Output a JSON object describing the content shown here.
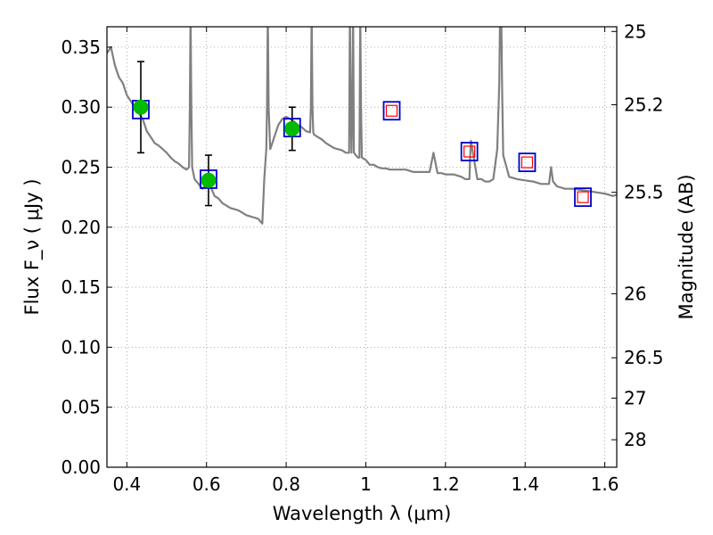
{
  "chart_data": {
    "type": "line",
    "xlabel": "Wavelength  λ (μm)",
    "ylabel": "Flux  F_ν  ( μJy )",
    "y2label": "Magnitude (AB)",
    "xlim": [
      0.35,
      1.63
    ],
    "ylim": [
      0.0,
      0.367
    ],
    "grid": true,
    "x_ticks": [
      0.4,
      0.6,
      0.8,
      1.0,
      1.2,
      1.4,
      1.6
    ],
    "x_tick_labels": [
      "0.4",
      "0.6",
      "0.8",
      "1",
      "1.2",
      "1.4",
      "1.6"
    ],
    "y_ticks": [
      0.0,
      0.05,
      0.1,
      0.15,
      0.2,
      0.25,
      0.3,
      0.35
    ],
    "y_tick_labels": [
      "0.00",
      "0.05",
      "0.10",
      "0.15",
      "0.20",
      "0.25",
      "0.30",
      "0.35"
    ],
    "y2_ticks": [
      25,
      25.2,
      25.5,
      26,
      26.5,
      27,
      28
    ],
    "y2_tick_labels": [
      "25",
      "25.2",
      "25.5",
      "26",
      "26.5",
      "27",
      "28"
    ],
    "colors": {
      "model": "#808080",
      "observed": "#00bb00",
      "model_photometry": "#0000cc",
      "upper_point": "#ff0000",
      "errorbar": "#000000",
      "grid": "#999999"
    },
    "series": [
      {
        "kind": "model_spectrum",
        "x": [
          0.35,
          0.36,
          0.37,
          0.38,
          0.39,
          0.4,
          0.41,
          0.42,
          0.43,
          0.44,
          0.45,
          0.46,
          0.47,
          0.48,
          0.49,
          0.5,
          0.51,
          0.52,
          0.53,
          0.54,
          0.55,
          0.556,
          0.558,
          0.56,
          0.562,
          0.564,
          0.57,
          0.58,
          0.59,
          0.6,
          0.61,
          0.62,
          0.63,
          0.64,
          0.65,
          0.66,
          0.67,
          0.68,
          0.69,
          0.7,
          0.71,
          0.72,
          0.73,
          0.735,
          0.74,
          0.745,
          0.75,
          0.752,
          0.754,
          0.756,
          0.76,
          0.765,
          0.77,
          0.78,
          0.79,
          0.8,
          0.81,
          0.82,
          0.83,
          0.84,
          0.85,
          0.86,
          0.862,
          0.864,
          0.866,
          0.868,
          0.87,
          0.88,
          0.89,
          0.9,
          0.91,
          0.92,
          0.93,
          0.94,
          0.95,
          0.958,
          0.96,
          0.962,
          0.964,
          0.966,
          0.968,
          0.97,
          0.98,
          0.984,
          0.986,
          0.988,
          0.99,
          1.0,
          1.01,
          1.02,
          1.03,
          1.04,
          1.05,
          1.06,
          1.07,
          1.08,
          1.09,
          1.1,
          1.12,
          1.14,
          1.16,
          1.17,
          1.18,
          1.19,
          1.2,
          1.22,
          1.24,
          1.25,
          1.26,
          1.262,
          1.264,
          1.27,
          1.28,
          1.29,
          1.3,
          1.31,
          1.32,
          1.33,
          1.335,
          1.337,
          1.34,
          1.342,
          1.345,
          1.36,
          1.38,
          1.4,
          1.42,
          1.44,
          1.46,
          1.465,
          1.47,
          1.48,
          1.5,
          1.52,
          1.54,
          1.56,
          1.58,
          1.6,
          1.62,
          1.63
        ],
        "y": [
          0.345,
          0.35,
          0.335,
          0.325,
          0.32,
          0.31,
          0.305,
          0.3,
          0.295,
          0.29,
          0.28,
          0.275,
          0.27,
          0.268,
          0.265,
          0.262,
          0.258,
          0.255,
          0.253,
          0.25,
          0.248,
          0.25,
          0.3,
          0.38,
          0.3,
          0.25,
          0.24,
          0.236,
          0.232,
          0.236,
          0.234,
          0.226,
          0.224,
          0.22,
          0.218,
          0.216,
          0.215,
          0.214,
          0.212,
          0.21,
          0.209,
          0.208,
          0.207,
          0.205,
          0.203,
          0.24,
          0.265,
          0.3,
          0.38,
          0.3,
          0.265,
          0.27,
          0.275,
          0.285,
          0.29,
          0.292,
          0.29,
          0.288,
          0.285,
          0.283,
          0.28,
          0.279,
          0.3,
          0.38,
          0.3,
          0.279,
          0.277,
          0.275,
          0.273,
          0.27,
          0.268,
          0.266,
          0.265,
          0.264,
          0.262,
          0.262,
          0.38,
          0.3,
          0.262,
          0.3,
          0.38,
          0.262,
          0.258,
          0.258,
          0.38,
          0.3,
          0.258,
          0.256,
          0.252,
          0.252,
          0.25,
          0.249,
          0.249,
          0.248,
          0.248,
          0.248,
          0.248,
          0.248,
          0.246,
          0.246,
          0.246,
          0.262,
          0.245,
          0.245,
          0.244,
          0.244,
          0.242,
          0.24,
          0.24,
          0.26,
          0.272,
          0.26,
          0.24,
          0.24,
          0.238,
          0.238,
          0.24,
          0.265,
          0.32,
          0.38,
          0.38,
          0.32,
          0.26,
          0.242,
          0.24,
          0.239,
          0.238,
          0.236,
          0.236,
          0.25,
          0.238,
          0.234,
          0.232,
          0.232,
          0.231,
          0.23,
          0.229,
          0.228,
          0.226,
          0.227
        ]
      },
      {
        "kind": "observed_photometry",
        "x": [
          0.435,
          0.605,
          0.815
        ],
        "y": [
          0.3,
          0.239,
          0.282
        ],
        "yerr": [
          0.038,
          0.021,
          0.018
        ]
      },
      {
        "kind": "model_photometry",
        "x": [
          0.435,
          0.605,
          0.815,
          1.065,
          1.26,
          1.405,
          1.545
        ],
        "y": [
          0.298,
          0.24,
          0.283,
          0.297,
          0.263,
          0.254,
          0.225
        ]
      },
      {
        "kind": "upper_points",
        "x": [
          1.065,
          1.26,
          1.405,
          1.545
        ],
        "y": [
          0.297,
          0.263,
          0.254,
          0.225
        ]
      }
    ]
  }
}
